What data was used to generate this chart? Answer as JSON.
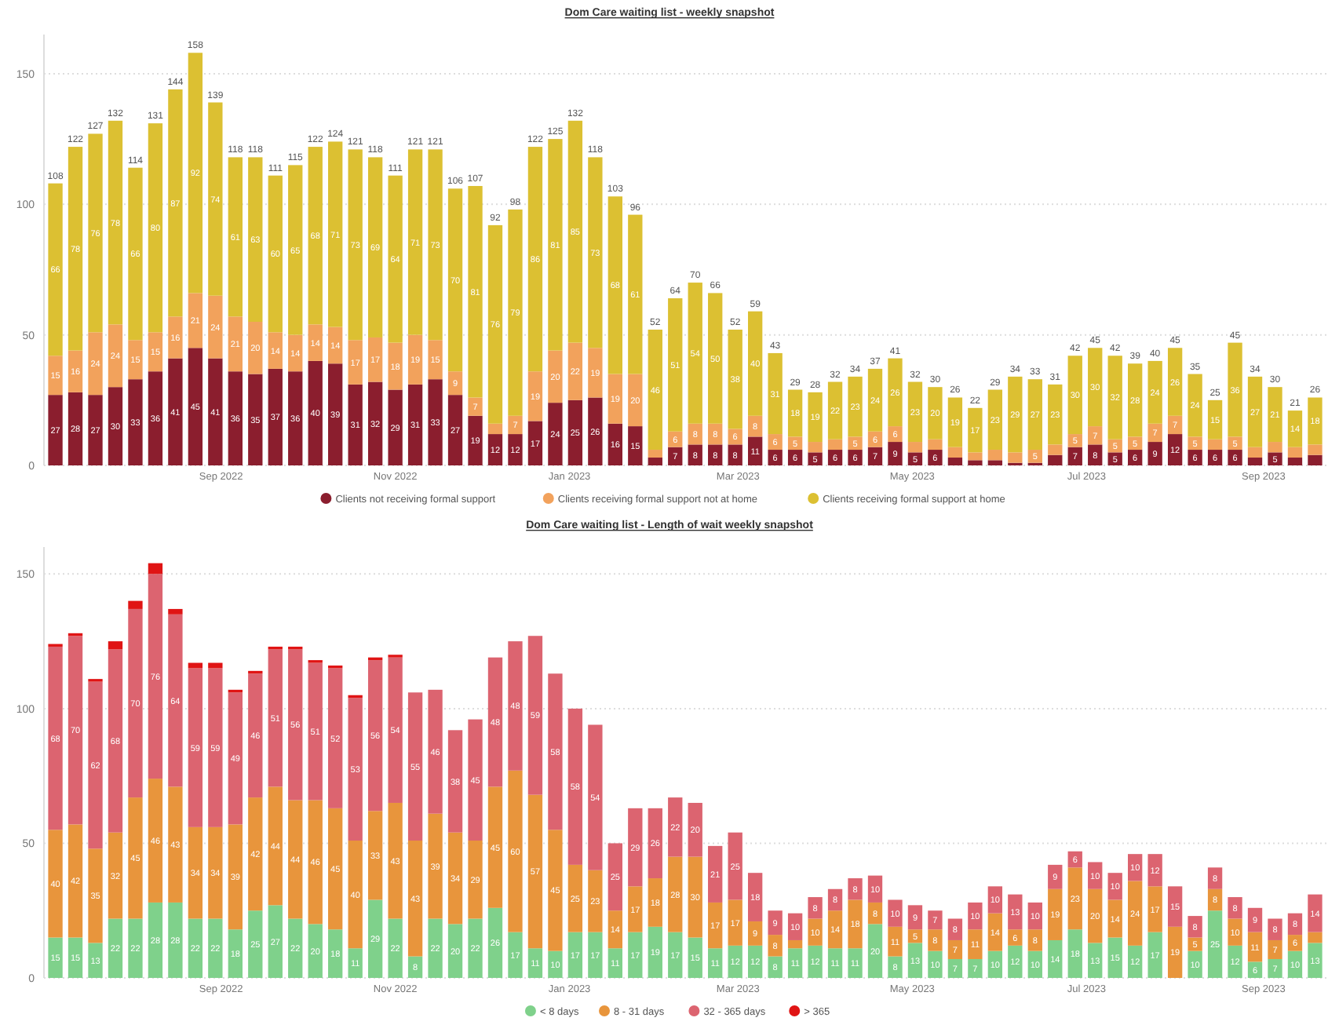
{
  "chart_data": [
    {
      "type": "bar",
      "title": "Dom Care waiting list - weekly snapshot",
      "stacked": true,
      "grid": "y",
      "legend": "bottom",
      "x": [
        "2022-07-05",
        "2022-07-12",
        "2022-07-19",
        "2022-07-26",
        "2022-08-02",
        "2022-08-09",
        "2022-08-16",
        "2022-08-23",
        "2022-08-30",
        "2022-09-06",
        "2022-09-13",
        "2022-09-20",
        "2022-09-27",
        "2022-10-04",
        "2022-10-11",
        "2022-10-18",
        "2022-10-25",
        "2022-11-01",
        "2022-11-08",
        "2022-11-15",
        "2022-11-22",
        "2022-11-29",
        "2022-12-06",
        "2022-12-13",
        "2022-12-20",
        "2022-12-27",
        "2023-01-03",
        "2023-01-10",
        "2023-01-17",
        "2023-01-24",
        "2023-01-31",
        "2023-02-07",
        "2023-02-14",
        "2023-02-21",
        "2023-02-28",
        "2023-03-07",
        "2023-03-14",
        "2023-03-21",
        "2023-03-28",
        "2023-04-04",
        "2023-04-11",
        "2023-04-18",
        "2023-04-25",
        "2023-05-02",
        "2023-05-09",
        "2023-05-16",
        "2023-05-23",
        "2023-05-30",
        "2023-06-06",
        "2023-06-13",
        "2023-06-20",
        "2023-06-27",
        "2023-07-04",
        "2023-07-11",
        "2023-07-18",
        "2023-07-25",
        "2023-08-01",
        "2023-08-08",
        "2023-08-15",
        "2023-08-22",
        "2023-08-29",
        "2023-09-05",
        "2023-09-12",
        "2023-09-19"
      ],
      "xlim": [
        "2022-07-01",
        "2023-09-23"
      ],
      "xticks": [
        {
          "value": "2022-09-01",
          "label": "Sep 2022"
        },
        {
          "value": "2022-11-01",
          "label": "Nov 2022"
        },
        {
          "value": "2023-01-01",
          "label": "Jan 2023"
        },
        {
          "value": "2023-03-01",
          "label": "Mar 2023"
        },
        {
          "value": "2023-05-01",
          "label": "May 2023"
        },
        {
          "value": "2023-07-01",
          "label": "Jul 2023"
        },
        {
          "value": "2023-09-01",
          "label": "Sep 2023"
        }
      ],
      "ylim": [
        0,
        165
      ],
      "yticks": [
        0,
        50,
        100,
        150
      ],
      "series": [
        {
          "name": "Clients not receiving formal support",
          "color": "#8b1e2e",
          "values": [
            27,
            28,
            27,
            30,
            33,
            36,
            41,
            45,
            41,
            36,
            35,
            37,
            36,
            40,
            39,
            31,
            32,
            29,
            31,
            33,
            27,
            19,
            12,
            12,
            17,
            24,
            25,
            26,
            16,
            15,
            3,
            7,
            8,
            8,
            8,
            11,
            6,
            6,
            5,
            6,
            6,
            7,
            9,
            5,
            6,
            3,
            2,
            2,
            1,
            1,
            4,
            7,
            8,
            5,
            6,
            9,
            12,
            6,
            6,
            6,
            3,
            5,
            3,
            4
          ],
          "value_labels": [
            "27",
            "28",
            "27",
            "30",
            "33",
            "36",
            "41",
            "45",
            "41",
            "36",
            "35",
            "37",
            "36",
            "40",
            "39",
            "31",
            "32",
            "29",
            "31",
            "33",
            "27",
            "19",
            "12",
            "12",
            "17",
            "24",
            "25",
            "26",
            "16",
            "15",
            null,
            "7",
            "8",
            "8",
            "8",
            "11",
            "6",
            "6",
            "5",
            "6",
            "6",
            "7",
            "9",
            "5",
            "6",
            null,
            null,
            null,
            null,
            null,
            null,
            "7",
            "8",
            "5",
            "6",
            "9",
            "12",
            "6",
            "6",
            "6",
            null,
            "5",
            null,
            null
          ]
        },
        {
          "name": "Clients receiving formal support not at home",
          "color": "#f2a25c",
          "values": [
            15,
            16,
            24,
            24,
            15,
            15,
            16,
            21,
            24,
            21,
            20,
            14,
            14,
            14,
            14,
            17,
            17,
            18,
            19,
            15,
            9,
            7,
            4,
            7,
            19,
            20,
            22,
            19,
            19,
            20,
            3,
            6,
            8,
            8,
            6,
            8,
            6,
            5,
            4,
            4,
            5,
            6,
            6,
            4,
            4,
            4,
            3,
            4,
            4,
            5,
            4,
            5,
            7,
            5,
            5,
            7,
            7,
            5,
            4,
            5,
            4,
            4,
            4,
            4
          ],
          "value_labels": [
            "15",
            "16",
            "24",
            "24",
            "15",
            "15",
            "16",
            "21",
            "24",
            "21",
            "20",
            "14",
            "14",
            "14",
            "14",
            "17",
            "17",
            "18",
            "19",
            "15",
            "9",
            "7",
            null,
            "7",
            "19",
            "20",
            "22",
            "19",
            "19",
            "20",
            null,
            "6",
            "8",
            "8",
            "6",
            "8",
            "6",
            "5",
            null,
            null,
            "5",
            "6",
            "6",
            null,
            null,
            null,
            null,
            null,
            null,
            "5",
            null,
            "5",
            "7",
            "5",
            "5",
            "7",
            "7",
            "5",
            null,
            "5",
            null,
            null,
            null,
            null
          ]
        },
        {
          "name": "Clients receiving formal support at home",
          "color": "#dcc032",
          "values": [
            66,
            78,
            76,
            78,
            66,
            80,
            87,
            92,
            74,
            61,
            63,
            60,
            65,
            68,
            71,
            73,
            69,
            64,
            71,
            73,
            70,
            81,
            76,
            79,
            86,
            81,
            85,
            73,
            68,
            61,
            46,
            51,
            54,
            50,
            38,
            40,
            31,
            18,
            19,
            22,
            23,
            24,
            26,
            23,
            20,
            19,
            17,
            23,
            29,
            27,
            23,
            30,
            30,
            32,
            28,
            24,
            26,
            24,
            15,
            36,
            27,
            21,
            14,
            18
          ],
          "value_labels": [
            "66",
            "78",
            "76",
            "78",
            "66",
            "80",
            "87",
            "92",
            "74",
            "61",
            "63",
            "60",
            "65",
            "68",
            "71",
            "73",
            "69",
            "64",
            "71",
            "73",
            "70",
            "81",
            "76",
            "79",
            "86",
            "81",
            "85",
            "73",
            "68",
            "61",
            "46",
            "51",
            "54",
            "50",
            "38",
            "40",
            "31",
            "18",
            "19",
            "22",
            "23",
            "24",
            "26",
            "23",
            "20",
            "19",
            "17",
            "23",
            "29",
            "27",
            "23",
            "30",
            "30",
            "32",
            "28",
            "24",
            "26",
            "24",
            "15",
            "36",
            "27",
            "21",
            "14",
            "18"
          ]
        }
      ],
      "totals": [
        "108",
        "122",
        "127",
        "132",
        "114",
        "131",
        "144",
        "158",
        "139",
        "118",
        "118",
        "111",
        "115",
        "122",
        "124",
        "121",
        "118",
        "111",
        "121",
        "121",
        "106",
        "107",
        "92",
        "98",
        "122",
        "125",
        "132",
        "118",
        "103",
        "96",
        "52",
        "64",
        "70",
        "66",
        "52",
        "59",
        "43",
        "29",
        "28",
        "32",
        "34",
        "37",
        "41",
        "32",
        "30",
        "26",
        "22",
        "29",
        "34",
        "33",
        "31",
        "42",
        "45",
        "42",
        "39",
        "40",
        "45",
        "35",
        "25",
        "45",
        "34",
        "30",
        "21",
        "26"
      ]
    },
    {
      "type": "bar",
      "title": "Dom Care waiting list - Length of wait weekly snapshot",
      "stacked": true,
      "grid": "y",
      "legend": "bottom",
      "x": [
        "2022-07-05",
        "2022-07-12",
        "2022-07-19",
        "2022-07-26",
        "2022-08-02",
        "2022-08-09",
        "2022-08-16",
        "2022-08-23",
        "2022-08-30",
        "2022-09-06",
        "2022-09-13",
        "2022-09-20",
        "2022-09-27",
        "2022-10-04",
        "2022-10-11",
        "2022-10-18",
        "2022-10-25",
        "2022-11-01",
        "2022-11-08",
        "2022-11-15",
        "2022-11-22",
        "2022-11-29",
        "2022-12-06",
        "2022-12-13",
        "2022-12-20",
        "2022-12-27",
        "2023-01-03",
        "2023-01-10",
        "2023-01-17",
        "2023-01-24",
        "2023-01-31",
        "2023-02-07",
        "2023-02-14",
        "2023-02-21",
        "2023-02-28",
        "2023-03-07",
        "2023-03-14",
        "2023-03-21",
        "2023-03-28",
        "2023-04-04",
        "2023-04-11",
        "2023-04-18",
        "2023-04-25",
        "2023-05-02",
        "2023-05-09",
        "2023-05-16",
        "2023-05-23",
        "2023-05-30",
        "2023-06-06",
        "2023-06-13",
        "2023-06-20",
        "2023-06-27",
        "2023-07-04",
        "2023-07-11",
        "2023-07-18",
        "2023-07-25",
        "2023-08-01",
        "2023-08-08",
        "2023-08-15",
        "2023-08-22",
        "2023-08-29",
        "2023-09-05",
        "2023-09-12",
        "2023-09-19"
      ],
      "xlim": [
        "2022-07-01",
        "2023-09-23"
      ],
      "xticks": [
        {
          "value": "2022-09-01",
          "label": "Sep 2022"
        },
        {
          "value": "2022-11-01",
          "label": "Nov 2022"
        },
        {
          "value": "2023-01-01",
          "label": "Jan 2023"
        },
        {
          "value": "2023-03-01",
          "label": "Mar 2023"
        },
        {
          "value": "2023-05-01",
          "label": "May 2023"
        },
        {
          "value": "2023-07-01",
          "label": "Jul 2023"
        },
        {
          "value": "2023-09-01",
          "label": "Sep 2023"
        }
      ],
      "ylim": [
        0,
        160
      ],
      "yticks": [
        0,
        50,
        100,
        150
      ],
      "series": [
        {
          "name": "< 8 days",
          "color": "#7fd18b",
          "values": [
            15,
            15,
            13,
            22,
            22,
            28,
            28,
            22,
            22,
            18,
            25,
            27,
            22,
            20,
            18,
            11,
            29,
            22,
            8,
            22,
            20,
            22,
            26,
            17,
            11,
            10,
            17,
            17,
            11,
            17,
            19,
            17,
            15,
            11,
            12,
            12,
            8,
            11,
            12,
            11,
            11,
            20,
            8,
            13,
            10,
            7,
            7,
            10,
            12,
            10,
            14,
            18,
            13,
            15,
            12,
            17,
            0,
            10,
            25,
            12,
            6,
            7,
            10,
            13
          ],
          "value_labels": [
            "15",
            "15",
            "13",
            "22",
            "22",
            "28",
            "28",
            "22",
            "22",
            "18",
            "25",
            "27",
            "22",
            "20",
            "18",
            "11",
            "29",
            "22",
            "8",
            "22",
            "20",
            "22",
            "26",
            "17",
            "11",
            "10",
            "17",
            "17",
            "11",
            "17",
            "19",
            "17",
            "15",
            "11",
            "12",
            "12",
            "8",
            "11",
            "12",
            "11",
            "11",
            "20",
            "8",
            "13",
            "10",
            "7",
            "7",
            "10",
            "12",
            "10",
            "14",
            "18",
            "13",
            "15",
            "12",
            "17",
            null,
            "10",
            "25",
            "12",
            "6",
            "7",
            "10",
            "13"
          ]
        },
        {
          "name": "8 - 31 days",
          "color": "#e8953c",
          "values": [
            40,
            42,
            35,
            32,
            45,
            46,
            43,
            34,
            34,
            39,
            42,
            44,
            44,
            46,
            45,
            40,
            33,
            43,
            43,
            39,
            34,
            29,
            45,
            60,
            57,
            45,
            25,
            23,
            14,
            17,
            18,
            28,
            30,
            17,
            17,
            9,
            8,
            3,
            10,
            14,
            18,
            8,
            11,
            5,
            8,
            7,
            11,
            14,
            6,
            8,
            19,
            23,
            20,
            14,
            24,
            17,
            19,
            5,
            8,
            10,
            11,
            7,
            6,
            4
          ],
          "value_labels": [
            "40",
            "42",
            "35",
            "32",
            "45",
            "46",
            "43",
            "34",
            "34",
            "39",
            "42",
            "44",
            "44",
            "46",
            "45",
            "40",
            "33",
            "43",
            "43",
            "39",
            "34",
            "29",
            "45",
            "60",
            "57",
            "45",
            "25",
            "23",
            "14",
            "17",
            "18",
            "28",
            "30",
            "17",
            "17",
            "9",
            "8",
            null,
            "10",
            "14",
            "18",
            "8",
            "11",
            "5",
            "8",
            "7",
            "11",
            "14",
            "6",
            "8",
            "19",
            "23",
            "20",
            "14",
            "24",
            "17",
            "19",
            "5",
            "8",
            "10",
            "11",
            "7",
            "6",
            null
          ]
        },
        {
          "name": "32 - 365 days",
          "color": "#dc6470",
          "values": [
            68,
            70,
            62,
            68,
            70,
            76,
            64,
            59,
            59,
            49,
            46,
            51,
            56,
            51,
            52,
            53,
            56,
            54,
            55,
            46,
            38,
            45,
            48,
            48,
            59,
            58,
            58,
            54,
            25,
            29,
            26,
            22,
            20,
            21,
            25,
            18,
            9,
            10,
            8,
            8,
            8,
            10,
            10,
            9,
            7,
            8,
            10,
            10,
            13,
            10,
            9,
            6,
            10,
            10,
            10,
            12,
            15,
            8,
            8,
            8,
            9,
            8,
            8,
            14
          ],
          "value_labels": [
            "68",
            "70",
            "62",
            "68",
            "70",
            "76",
            "64",
            "59",
            "59",
            "49",
            "46",
            "51",
            "56",
            "51",
            "52",
            "53",
            "56",
            "54",
            "55",
            "46",
            "38",
            "45",
            "48",
            "48",
            "59",
            "58",
            "58",
            "54",
            "25",
            "29",
            "26",
            "22",
            "20",
            "21",
            "25",
            "18",
            "9",
            "10",
            "8",
            "8",
            "8",
            "10",
            "10",
            "9",
            "7",
            "8",
            "10",
            "10",
            "13",
            "10",
            "9",
            "6",
            "10",
            "10",
            "10",
            "12",
            "15",
            "8",
            "8",
            "8",
            "9",
            "8",
            "8",
            "14"
          ]
        },
        {
          "name": "> 365",
          "color": "#e01414",
          "values": [
            1,
            1,
            1,
            3,
            3,
            4,
            2,
            2,
            2,
            1,
            1,
            1,
            1,
            1,
            1,
            1,
            1,
            1,
            0,
            0,
            0,
            0,
            0,
            0,
            0,
            0,
            0,
            0,
            0,
            0,
            0,
            0,
            0,
            0,
            0,
            0,
            0,
            0,
            0,
            0,
            0,
            0,
            0,
            0,
            0,
            0,
            0,
            0,
            0,
            0,
            0,
            0,
            0,
            0,
            0,
            0,
            0,
            0,
            0,
            0,
            0,
            0,
            0,
            0
          ]
        }
      ]
    }
  ]
}
